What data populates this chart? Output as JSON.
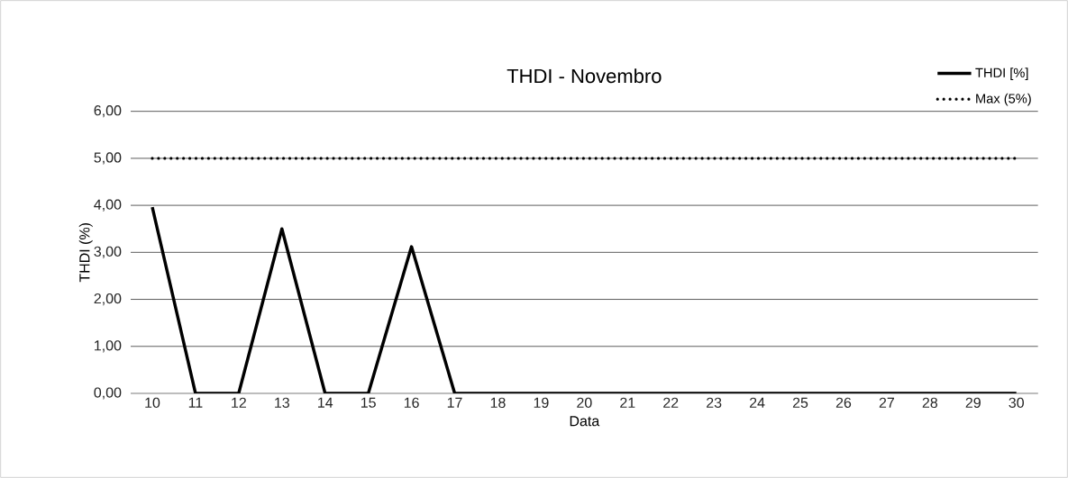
{
  "chart_data": {
    "type": "line",
    "title": "THDI - Novembro",
    "xlabel": "Data",
    "ylabel": "THDI (%)",
    "categories": [
      "10",
      "11",
      "12",
      "13",
      "14",
      "15",
      "16",
      "17",
      "18",
      "19",
      "20",
      "21",
      "22",
      "23",
      "24",
      "25",
      "26",
      "27",
      "28",
      "29",
      "30"
    ],
    "series": [
      {
        "name": "THDI [%]",
        "color": "#000000",
        "line_style": "solid",
        "values": [
          3.96,
          0,
          0,
          3.5,
          0,
          0,
          3.12,
          0,
          0,
          0,
          0,
          0,
          0,
          0,
          0,
          0,
          0,
          0,
          0,
          0,
          0
        ]
      },
      {
        "name": "Max (5%)",
        "color": "#000000",
        "line_style": "dotted",
        "values": [
          5,
          5,
          5,
          5,
          5,
          5,
          5,
          5,
          5,
          5,
          5,
          5,
          5,
          5,
          5,
          5,
          5,
          5,
          5,
          5,
          5
        ]
      }
    ],
    "ylim": [
      0,
      6
    ],
    "yticks": [
      {
        "value": 0,
        "label": "0,00"
      },
      {
        "value": 1,
        "label": "1,00"
      },
      {
        "value": 2,
        "label": "2,00"
      },
      {
        "value": 3,
        "label": "3,00"
      },
      {
        "value": 4,
        "label": "4,00"
      },
      {
        "value": 5,
        "label": "5,00"
      },
      {
        "value": 6,
        "label": "6,00"
      }
    ],
    "grid": "y",
    "legend": "top right",
    "marker": "none"
  }
}
